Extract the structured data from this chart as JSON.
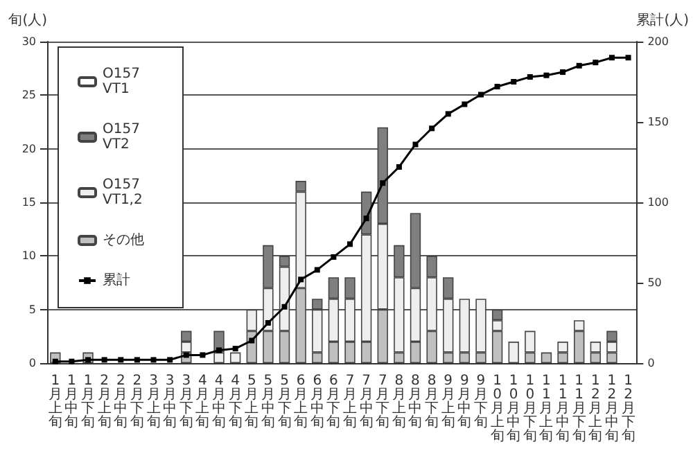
{
  "chart_data": {
    "type": "bar",
    "stacked": true,
    "ylabel": "旬(人)",
    "y2label": "累計(人)",
    "categories": [
      "1月上旬",
      "1月中旬",
      "1月下旬",
      "2月上旬",
      "2月中旬",
      "2月下旬",
      "3月上旬",
      "3月中旬",
      "3月下旬",
      "4月上旬",
      "4月中旬",
      "4月下旬",
      "5月上旬",
      "5月中旬",
      "5月下旬",
      "6月上旬",
      "6月中旬",
      "6月下旬",
      "7月上旬",
      "7月中旬",
      "7月下旬",
      "8月上旬",
      "8月中旬",
      "8月下旬",
      "9月上旬",
      "9月中旬",
      "9月下旬",
      "10月上旬",
      "10月中旬",
      "10月下旬",
      "11月上旬",
      "11月中旬",
      "11月下旬",
      "12月上旬",
      "12月中旬",
      "12月下旬"
    ],
    "series": [
      {
        "name": "その他",
        "color": "#c0c0c0",
        "values": [
          1,
          0,
          1,
          0,
          0,
          0,
          0,
          0,
          1,
          0,
          0,
          0,
          3,
          3,
          3,
          7,
          1,
          2,
          2,
          2,
          5,
          1,
          2,
          3,
          1,
          1,
          1,
          3,
          0,
          1,
          1,
          1,
          3,
          1,
          1,
          0
        ]
      },
      {
        "name": "O157 VT1,2",
        "color": "#eeeeee",
        "values": [
          0,
          0,
          0,
          0,
          0,
          0,
          0,
          0,
          1,
          0,
          1,
          1,
          2,
          4,
          6,
          9,
          4,
          4,
          4,
          10,
          8,
          7,
          5,
          5,
          5,
          5,
          5,
          1,
          2,
          2,
          0,
          1,
          1,
          1,
          1,
          0
        ]
      },
      {
        "name": "O157 VT2",
        "color": "#7f7f7f",
        "values": [
          0,
          0,
          0,
          0,
          0,
          0,
          0,
          0,
          1,
          0,
          2,
          0,
          0,
          4,
          1,
          1,
          1,
          2,
          2,
          4,
          9,
          3,
          7,
          2,
          2,
          0,
          0,
          1,
          0,
          0,
          0,
          0,
          0,
          0,
          1,
          0
        ]
      },
      {
        "name": "O157 VT1",
        "color": "#ffffff",
        "values": [
          0,
          0,
          0,
          0,
          0,
          0,
          0,
          0,
          0,
          0,
          0,
          0,
          0,
          0,
          0,
          0,
          0,
          0,
          0,
          0,
          0,
          0,
          0,
          0,
          0,
          0,
          0,
          0,
          0,
          0,
          0,
          0,
          0,
          0,
          0,
          0
        ]
      },
      {
        "name": "累計",
        "type": "line",
        "axis": "y2",
        "color": "#000000",
        "marker": "square",
        "values": [
          1,
          1,
          2,
          2,
          2,
          2,
          2,
          2,
          5,
          5,
          8,
          9,
          14,
          25,
          35,
          52,
          58,
          66,
          74,
          90,
          112,
          122,
          136,
          146,
          155,
          161,
          167,
          172,
          175,
          178,
          179,
          181,
          185,
          187,
          190,
          190
        ]
      }
    ],
    "ylim": [
      0,
      30
    ],
    "yticks": [
      0,
      5,
      10,
      15,
      20,
      25,
      30
    ],
    "y2lim": [
      0,
      200
    ],
    "y2ticks": [
      0,
      50,
      100,
      150,
      200
    ],
    "grid": "y",
    "legend": "top left"
  }
}
